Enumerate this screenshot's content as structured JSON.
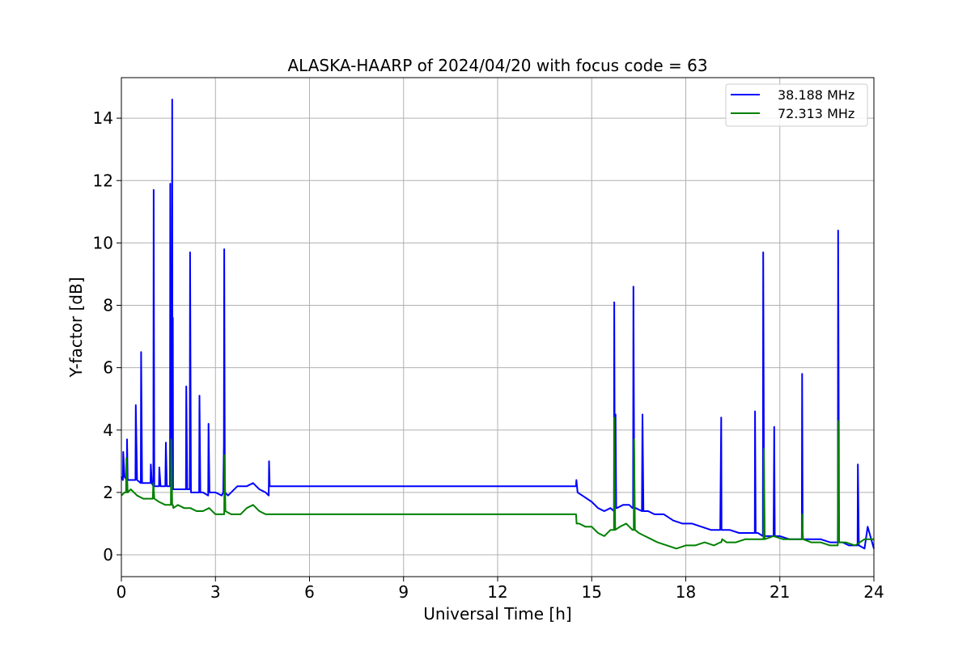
{
  "chart_data": {
    "type": "line",
    "title": "ALASKA-HAARP of 2024/04/20 with focus code = 63",
    "xlabel": "Universal Time [h]",
    "ylabel": "Y-factor [dB]",
    "xlim": [
      0,
      24
    ],
    "ylim": [
      -0.7,
      15.3
    ],
    "xticks": [
      0,
      3,
      6,
      9,
      12,
      15,
      18,
      21,
      24
    ],
    "yticks": [
      0,
      2,
      4,
      6,
      8,
      10,
      12,
      14
    ],
    "grid": true,
    "legend_position": "top-right",
    "series": [
      {
        "name": "38.188 MHz",
        "color": "#0000ff",
        "x": [
          0,
          0.05,
          0.06,
          0.1,
          0.17,
          0.18,
          0.2,
          0.3,
          0.45,
          0.46,
          0.5,
          0.62,
          0.63,
          0.66,
          0.8,
          0.93,
          0.94,
          0.97,
          1.02,
          1.03,
          1.05,
          1.2,
          1.21,
          1.25,
          1.4,
          1.42,
          1.45,
          1.55,
          1.56,
          1.58,
          1.61,
          1.62,
          1.63,
          1.64,
          1.65,
          1.68,
          1.8,
          2.0,
          2.06,
          2.07,
          2.1,
          2.18,
          2.19,
          2.22,
          2.3,
          2.48,
          2.49,
          2.52,
          2.6,
          2.77,
          2.78,
          2.81,
          3.0,
          3.2,
          3.25,
          3.27,
          3.28,
          3.3,
          3.4,
          3.7,
          4.0,
          4.2,
          4.4,
          4.6,
          4.7,
          4.71,
          4.73,
          4.74,
          14.5,
          14.51,
          14.55,
          14.7,
          15.0,
          15.2,
          15.4,
          15.6,
          15.71,
          15.72,
          15.74,
          15.76,
          15.78,
          15.8,
          16.0,
          16.2,
          16.3,
          16.32,
          16.33,
          16.36,
          16.4,
          16.6,
          16.62,
          16.65,
          16.8,
          17.0,
          17.3,
          17.6,
          17.9,
          18.2,
          18.5,
          18.8,
          19.1,
          19.13,
          19.14,
          19.17,
          19.4,
          19.7,
          20.0,
          20.2,
          20.21,
          20.23,
          20.3,
          20.46,
          20.47,
          20.5,
          20.8,
          20.82,
          20.84,
          21.0,
          21.3,
          21.7,
          21.71,
          21.73,
          22.0,
          22.3,
          22.6,
          22.85,
          22.86,
          22.89,
          23.0,
          23.2,
          23.48,
          23.49,
          23.52,
          23.7,
          23.8,
          24.0
        ],
        "values": [
          2.5,
          2.4,
          3.3,
          2.5,
          2.4,
          3.7,
          2.4,
          2.4,
          2.4,
          4.8,
          2.4,
          2.3,
          6.5,
          2.3,
          2.3,
          2.3,
          2.9,
          2.3,
          2.2,
          11.7,
          2.2,
          2.2,
          2.8,
          2.2,
          2.2,
          3.6,
          2.2,
          2.2,
          11.9,
          2.2,
          2.2,
          14.6,
          2.1,
          7.6,
          2.1,
          2.1,
          2.1,
          2.1,
          2.1,
          5.4,
          2.1,
          2.1,
          9.7,
          2.0,
          2.0,
          2.0,
          5.1,
          2.0,
          2.0,
          1.9,
          4.2,
          2.0,
          2.0,
          1.9,
          2.0,
          3.5,
          9.8,
          2.0,
          1.9,
          2.2,
          2.2,
          2.3,
          2.1,
          2.0,
          1.9,
          3.0,
          2.2,
          2.2,
          2.2,
          2.4,
          2.0,
          1.9,
          1.7,
          1.5,
          1.4,
          1.5,
          1.4,
          8.1,
          1.4,
          4.5,
          1.5,
          1.5,
          1.6,
          1.6,
          1.5,
          1.5,
          8.6,
          1.5,
          1.5,
          1.4,
          4.5,
          1.4,
          1.4,
          1.3,
          1.3,
          1.1,
          1.0,
          1.0,
          0.9,
          0.8,
          0.8,
          4.4,
          0.8,
          0.8,
          0.8,
          0.7,
          0.7,
          0.7,
          4.6,
          0.7,
          0.7,
          0.6,
          9.7,
          0.6,
          0.6,
          4.1,
          0.6,
          0.6,
          0.5,
          0.5,
          5.8,
          0.5,
          0.5,
          0.5,
          0.4,
          0.4,
          10.4,
          0.4,
          0.4,
          0.3,
          0.3,
          2.9,
          0.3,
          0.2,
          0.9,
          0.2
        ]
      },
      {
        "name": "72.313 MHz",
        "color": "#008000",
        "x": [
          0,
          0.1,
          0.15,
          0.16,
          0.2,
          0.3,
          0.5,
          0.7,
          1.0,
          1.02,
          1.05,
          1.2,
          1.4,
          1.58,
          1.59,
          1.62,
          1.64,
          1.66,
          1.8,
          2.0,
          2.2,
          2.4,
          2.6,
          2.8,
          3.0,
          3.2,
          3.28,
          3.29,
          3.32,
          3.5,
          3.8,
          4.0,
          4.2,
          4.4,
          4.6,
          4.73,
          4.74,
          14.5,
          14.52,
          14.6,
          14.8,
          15.0,
          15.2,
          15.4,
          15.6,
          15.71,
          15.72,
          15.75,
          15.9,
          16.1,
          16.3,
          16.34,
          16.35,
          16.38,
          16.5,
          16.7,
          16.9,
          17.1,
          17.4,
          17.7,
          18.0,
          18.3,
          18.6,
          18.9,
          19.1,
          19.13,
          19.16,
          19.3,
          19.6,
          19.9,
          20.2,
          20.48,
          20.49,
          20.52,
          20.8,
          21.1,
          21.4,
          21.7,
          21.71,
          21.74,
          22.0,
          22.3,
          22.6,
          22.85,
          22.86,
          22.89,
          23.1,
          23.4,
          23.7,
          24.0
        ],
        "values": [
          1.9,
          2.0,
          2.0,
          3.1,
          2.0,
          2.1,
          1.9,
          1.8,
          1.8,
          2.3,
          1.8,
          1.7,
          1.6,
          1.6,
          3.7,
          1.6,
          1.6,
          1.5,
          1.6,
          1.5,
          1.5,
          1.4,
          1.4,
          1.5,
          1.3,
          1.3,
          1.3,
          3.2,
          1.4,
          1.3,
          1.3,
          1.5,
          1.6,
          1.4,
          1.3,
          1.3,
          1.3,
          1.3,
          1.0,
          1.0,
          0.9,
          0.9,
          0.7,
          0.6,
          0.8,
          0.8,
          4.4,
          0.8,
          0.9,
          1.0,
          0.8,
          0.8,
          3.7,
          0.8,
          0.7,
          0.6,
          0.5,
          0.4,
          0.3,
          0.2,
          0.3,
          0.3,
          0.4,
          0.3,
          0.4,
          0.4,
          0.5,
          0.4,
          0.4,
          0.5,
          0.5,
          0.5,
          3.4,
          0.5,
          0.6,
          0.5,
          0.5,
          0.5,
          1.3,
          0.5,
          0.4,
          0.4,
          0.3,
          0.3,
          4.3,
          0.4,
          0.4,
          0.3,
          0.5,
          0.5
        ]
      }
    ]
  }
}
